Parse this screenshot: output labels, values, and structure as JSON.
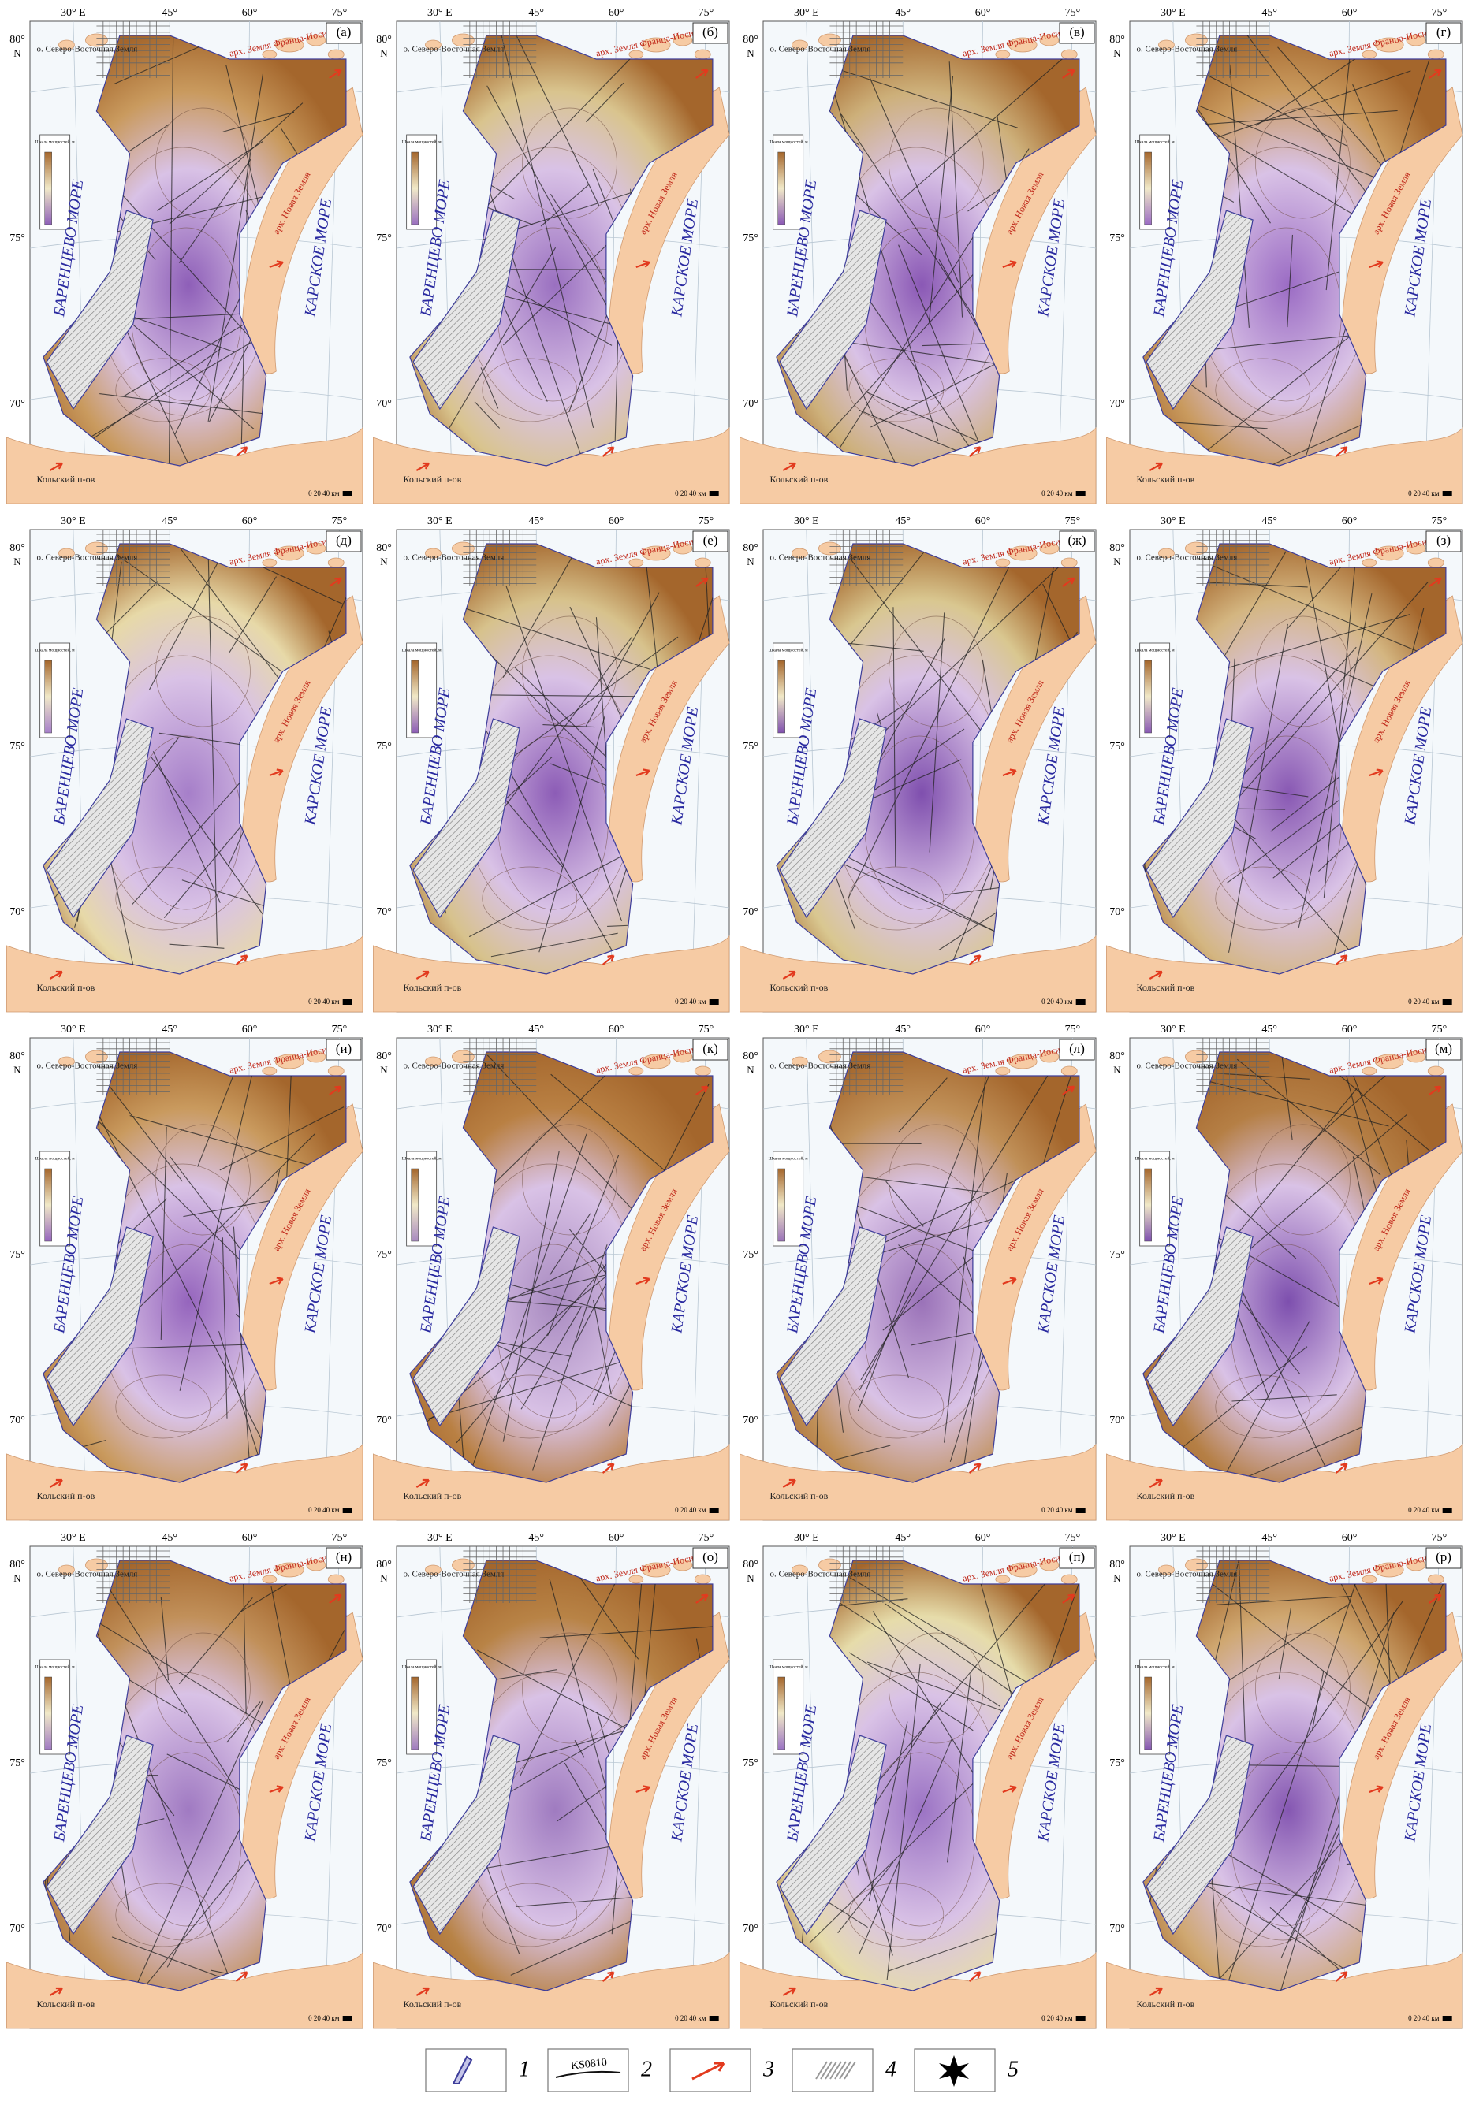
{
  "panels": [
    {
      "label": "(а)"
    },
    {
      "label": "(б)"
    },
    {
      "label": "(в)"
    },
    {
      "label": "(г)"
    },
    {
      "label": "(д)"
    },
    {
      "label": "(е)"
    },
    {
      "label": "(ж)"
    },
    {
      "label": "(з)"
    },
    {
      "label": "(и)"
    },
    {
      "label": "(к)"
    },
    {
      "label": "(л)"
    },
    {
      "label": "(м)"
    },
    {
      "label": "(н)"
    },
    {
      "label": "(о)"
    },
    {
      "label": "(п)"
    },
    {
      "label": "(р)"
    }
  ],
  "map_labels": {
    "lon": [
      "30° E",
      "45°",
      "60°",
      "75°"
    ],
    "lat": [
      "80°",
      "75°",
      "70°"
    ],
    "north": "N",
    "barents": "БАРЕНЦЕВО МОРЕ",
    "kara": "КАРСКОЕ МОРЕ",
    "ne_land": "о. Северо-Восточная Земля",
    "fji": "арх. Земля Франца-Иосифа",
    "kola": "Кольский п-ов",
    "nz": "арх. Новая Земля",
    "scale": "0 20 40 км",
    "thickness_scale": "Шкала мощностей, м"
  },
  "legend": {
    "items": [
      "1",
      "2",
      "3",
      "4",
      "5"
    ],
    "line_code": "KS0810"
  }
}
